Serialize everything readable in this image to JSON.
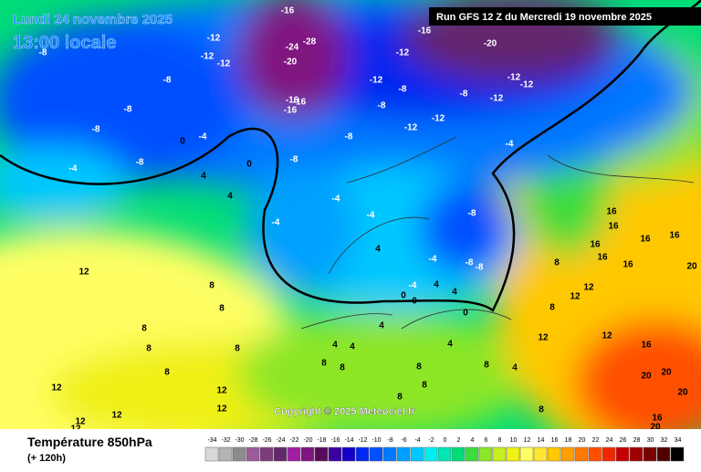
{
  "header": {
    "date": "Lundi 24 novembre 2025",
    "time": "13:00 locale",
    "run": "Run GFS 12 Z du Mercredi 19 novembre 2025"
  },
  "copyright": "Copyright © 2025 Meteociel.fr",
  "footer": {
    "title": "Température 850hPa",
    "lead": "(+ 120h)"
  },
  "legend": {
    "labels": [
      "-34",
      "-32",
      "-30",
      "-28",
      "-26",
      "-24",
      "-22",
      "-20",
      "-18",
      "-16",
      "-14",
      "-12",
      "-10",
      "-8",
      "-6",
      "-4",
      "-2",
      "0",
      "2",
      "4",
      "6",
      "8",
      "10",
      "12",
      "14",
      "16",
      "18",
      "20",
      "22",
      "24",
      "26",
      "28",
      "30",
      "32",
      "34"
    ],
    "colors": [
      "#d8d8d8",
      "#b4b4b4",
      "#8c8c8c",
      "#9c5a9c",
      "#7c3c7c",
      "#64286c",
      "#a01ea0",
      "#801480",
      "#5a0a5a",
      "#3c00a0",
      "#1400c8",
      "#0028f0",
      "#0050ff",
      "#0078ff",
      "#00a0ff",
      "#00c8ff",
      "#00f0f0",
      "#00e6b4",
      "#00dc78",
      "#3cdc3c",
      "#8ce628",
      "#c8f01e",
      "#f0f014",
      "#ffff64",
      "#ffe632",
      "#ffc800",
      "#ffa000",
      "#ff7800",
      "#ff5000",
      "#f02800",
      "#c80000",
      "#a00000",
      "#780000",
      "#500000",
      "#000000"
    ]
  },
  "map_labels": [
    "-12",
    "-12",
    "-12",
    "-8",
    "-8",
    "-8",
    "-8",
    "-8",
    "-4",
    "0",
    "-4",
    "4",
    "0",
    "-8",
    "-8",
    "-8",
    "-8",
    "-12",
    "-12",
    "-16",
    "-20",
    "-12",
    "-12",
    "-12",
    "-8",
    "-12",
    "-12",
    "-4",
    "-4",
    "-4",
    "-4",
    "-8",
    "-4",
    "-8",
    "-8",
    "4",
    "4",
    "4",
    "4",
    "0",
    "0",
    "0",
    "-4",
    "8",
    "8",
    "12",
    "12",
    "16",
    "16",
    "16",
    "16",
    "16",
    "16",
    "16",
    "20",
    "16",
    "20",
    "20",
    "20",
    "16",
    "20",
    "12",
    "12",
    "12",
    "8",
    "8",
    "8",
    "8",
    "8",
    "8",
    "4",
    "4",
    "4",
    "4",
    "8",
    "8",
    "8",
    "8",
    "8",
    "4",
    "12",
    "12",
    "12",
    "12",
    "12",
    "12",
    "8",
    "8",
    "-16",
    "-24",
    "-28",
    "-20",
    "-16",
    "-16",
    "-16"
  ]
}
